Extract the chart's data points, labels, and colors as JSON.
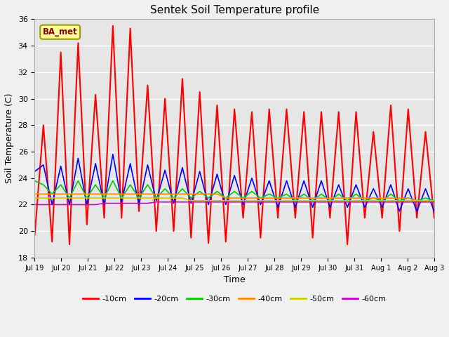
{
  "title": "Sentek Soil Temperature profile",
  "xlabel": "Time",
  "ylabel": "Soil Temperature (C)",
  "ylim": [
    18,
    36
  ],
  "yticks": [
    18,
    20,
    22,
    24,
    26,
    28,
    30,
    32,
    34,
    36
  ],
  "annotation": "BA_met",
  "fig_bg_color": "#f0f0f0",
  "plot_bg_color": "#e6e6e6",
  "legend_entries": [
    "-10cm",
    "-20cm",
    "-30cm",
    "-40cm",
    "-50cm",
    "-60cm"
  ],
  "legend_colors": [
    "#ff0000",
    "#0000ff",
    "#00cc00",
    "#ff8c00",
    "#cccc00",
    "#cc00cc"
  ],
  "xtick_labels": [
    "Jul 19",
    "Jul 20",
    "Jul 21",
    "Jul 22",
    "Jul 23",
    "Jul 24",
    "Jul 25",
    "Jul 26",
    "Jul 27",
    "Jul 28",
    "Jul 29",
    "Jul 30",
    "Jul 31",
    "Aug 1",
    "Aug 2",
    "Aug 3"
  ],
  "series": {
    "depth_10": [
      19.7,
      28.0,
      19.2,
      33.5,
      19.0,
      34.2,
      20.5,
      30.3,
      21.0,
      35.5,
      21.0,
      35.3,
      21.5,
      31.0,
      20.0,
      30.0,
      20.0,
      31.5,
      19.5,
      30.5,
      19.1,
      29.5,
      19.2,
      29.2,
      21.0,
      29.0,
      19.5,
      29.2,
      21.0,
      29.2,
      21.0,
      29.0,
      19.5,
      29.0,
      21.0,
      29.0,
      19.0,
      29.0,
      21.0,
      27.5,
      21.0,
      29.5,
      20.0,
      29.2,
      21.0,
      27.5,
      21.0
    ],
    "depth_20": [
      24.5,
      25.0,
      22.0,
      24.9,
      22.0,
      25.5,
      22.0,
      25.1,
      22.0,
      25.8,
      22.2,
      25.1,
      22.0,
      25.0,
      22.3,
      24.6,
      22.1,
      24.8,
      22.1,
      24.5,
      22.0,
      24.3,
      22.0,
      24.2,
      22.0,
      24.0,
      22.0,
      23.8,
      21.8,
      23.8,
      21.8,
      23.8,
      21.8,
      23.8,
      21.8,
      23.5,
      21.8,
      23.5,
      21.8,
      23.2,
      21.8,
      23.5,
      21.5,
      23.2,
      21.5,
      23.2,
      21.5
    ],
    "depth_30": [
      23.8,
      23.5,
      22.8,
      23.5,
      22.5,
      23.8,
      22.5,
      23.5,
      22.5,
      23.8,
      22.5,
      23.5,
      22.5,
      23.5,
      22.5,
      23.2,
      22.5,
      23.2,
      22.5,
      23.0,
      22.5,
      23.0,
      22.5,
      23.0,
      22.5,
      23.0,
      22.5,
      22.8,
      22.5,
      22.8,
      22.3,
      22.8,
      22.3,
      22.8,
      22.3,
      22.8,
      22.3,
      22.8,
      22.3,
      22.5,
      22.3,
      22.8,
      22.3,
      22.5,
      22.3,
      22.5,
      22.3
    ],
    "depth_40": [
      22.8,
      22.8,
      22.8,
      22.8,
      22.8,
      22.8,
      22.8,
      22.8,
      22.8,
      22.8,
      22.8,
      22.8,
      22.8,
      22.8,
      22.8,
      22.8,
      22.8,
      22.8,
      22.8,
      22.8,
      22.8,
      22.8,
      22.5,
      22.5,
      22.5,
      22.5,
      22.5,
      22.5,
      22.5,
      22.5,
      22.5,
      22.5,
      22.5,
      22.5,
      22.5,
      22.5,
      22.5,
      22.5,
      22.5,
      22.5,
      22.5,
      22.5,
      22.5,
      22.5,
      22.3,
      22.3,
      22.3
    ],
    "depth_50": [
      22.5,
      22.5,
      22.5,
      22.5,
      22.5,
      22.5,
      22.5,
      22.5,
      22.5,
      22.5,
      22.5,
      22.5,
      22.5,
      22.5,
      22.5,
      22.5,
      22.5,
      22.5,
      22.3,
      22.3,
      22.3,
      22.3,
      22.3,
      22.3,
      22.3,
      22.3,
      22.3,
      22.3,
      22.3,
      22.3,
      22.3,
      22.3,
      22.3,
      22.3,
      22.3,
      22.3,
      22.3,
      22.3,
      22.3,
      22.3,
      22.3,
      22.3,
      22.3,
      22.3,
      22.3,
      22.3,
      22.3
    ],
    "depth_60": [
      22.0,
      22.0,
      22.0,
      22.0,
      22.0,
      22.0,
      22.0,
      22.0,
      22.1,
      22.1,
      22.1,
      22.1,
      22.1,
      22.1,
      22.2,
      22.2,
      22.2,
      22.2,
      22.2,
      22.2,
      22.2,
      22.2,
      22.2,
      22.2,
      22.2,
      22.2,
      22.2,
      22.2,
      22.2,
      22.2,
      22.2,
      22.2,
      22.2,
      22.2,
      22.2,
      22.2,
      22.2,
      22.2,
      22.2,
      22.2,
      22.2,
      22.2,
      22.2,
      22.2,
      22.2,
      22.2,
      22.2
    ]
  }
}
